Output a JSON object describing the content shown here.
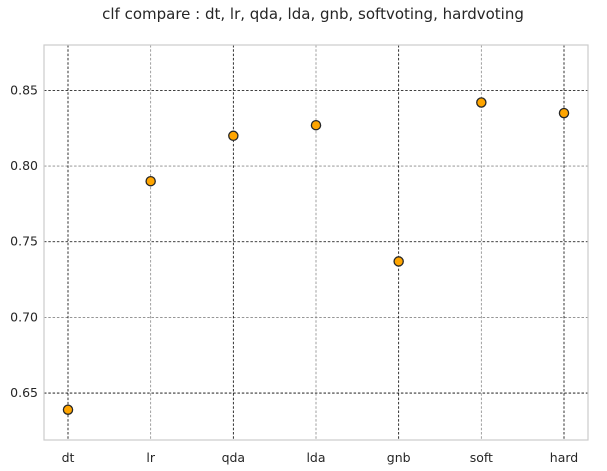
{
  "chart_data": {
    "type": "scatter",
    "title": "clf compare : dt, lr, qda, lda, gnb, softvoting, hardvoting",
    "xlabel": "",
    "ylabel": "",
    "categories": [
      "dt",
      "lr",
      "qda",
      "lda",
      "gnb",
      "soft",
      "hard"
    ],
    "values": [
      0.639,
      0.79,
      0.82,
      0.827,
      0.737,
      0.842,
      0.835
    ],
    "ylim": [
      0.619,
      0.88
    ],
    "yticks": [
      0.65,
      0.7,
      0.75,
      0.8,
      0.85
    ],
    "ytick_labels": [
      "0.65",
      "0.70",
      "0.75",
      "0.80",
      "0.85"
    ],
    "grid": true,
    "legend": "none",
    "marker_color": "#ffa500",
    "marker_edge_color": "#262626",
    "axes_border_color": "#cccccc"
  }
}
